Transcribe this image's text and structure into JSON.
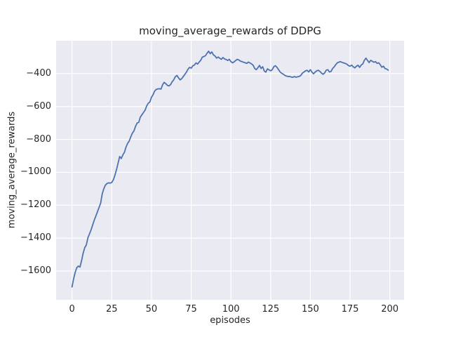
{
  "figure": {
    "title": "moving_average_rewards of DDPG",
    "xlabel": "episodes",
    "ylabel": "moving_average_rewards"
  },
  "chart_data": {
    "type": "line",
    "title": "moving_average_rewards of DDPG",
    "xlabel": "episodes",
    "ylabel": "moving_average_rewards",
    "grid": true,
    "legend": "none",
    "xlim": [
      -10,
      209
    ],
    "ylim": [
      -1775,
      -200
    ],
    "x_ticks": [
      0,
      25,
      50,
      75,
      100,
      125,
      150,
      175,
      200
    ],
    "x_tick_labels": [
      "0",
      "25",
      "50",
      "75",
      "100",
      "125",
      "150",
      "175",
      "200"
    ],
    "y_ticks": [
      -400,
      -600,
      -800,
      -1000,
      -1200,
      -1400,
      -1600
    ],
    "y_tick_labels": [
      "−400",
      "−600",
      "−800",
      "−1000",
      "−1200",
      "−1400",
      "−1600"
    ],
    "style": {
      "axes_background": "#eaeaf2",
      "grid_color": "#ffffff",
      "line_color": "#4c72b0",
      "text_color": "#262626",
      "figure_background": "#ffffff"
    },
    "series": [
      {
        "name": "moving_average_rewards",
        "color": "#4c72b0",
        "x_start": 0,
        "x_step": 1,
        "n_points": 200,
        "values": [
          -1697,
          -1648,
          -1608,
          -1580,
          -1570,
          -1576,
          -1538,
          -1492,
          -1458,
          -1442,
          -1398,
          -1374,
          -1350,
          -1320,
          -1291,
          -1266,
          -1240,
          -1214,
          -1188,
          -1132,
          -1100,
          -1078,
          -1068,
          -1064,
          -1066,
          -1062,
          -1046,
          -1018,
          -984,
          -944,
          -904,
          -916,
          -894,
          -878,
          -846,
          -824,
          -810,
          -784,
          -762,
          -748,
          -720,
          -700,
          -696,
          -664,
          -650,
          -636,
          -622,
          -596,
          -580,
          -572,
          -544,
          -528,
          -506,
          -496,
          -493,
          -492,
          -494,
          -468,
          -453,
          -461,
          -471,
          -475,
          -467,
          -450,
          -438,
          -419,
          -411,
          -425,
          -438,
          -431,
          -418,
          -405,
          -391,
          -373,
          -362,
          -367,
          -353,
          -348,
          -335,
          -342,
          -330,
          -319,
          -300,
          -296,
          -291,
          -276,
          -264,
          -279,
          -268,
          -286,
          -293,
          -306,
          -299,
          -307,
          -313,
          -302,
          -311,
          -314,
          -320,
          -313,
          -327,
          -334,
          -329,
          -320,
          -313,
          -317,
          -324,
          -327,
          -331,
          -334,
          -338,
          -330,
          -335,
          -341,
          -349,
          -369,
          -376,
          -364,
          -350,
          -369,
          -358,
          -384,
          -391,
          -371,
          -377,
          -383,
          -376,
          -358,
          -352,
          -362,
          -376,
          -390,
          -398,
          -404,
          -411,
          -415,
          -418,
          -417,
          -421,
          -422,
          -418,
          -422,
          -419,
          -417,
          -411,
          -397,
          -390,
          -383,
          -380,
          -390,
          -376,
          -391,
          -401,
          -391,
          -383,
          -380,
          -386,
          -397,
          -404,
          -396,
          -379,
          -376,
          -390,
          -387,
          -369,
          -359,
          -345,
          -334,
          -330,
          -327,
          -332,
          -335,
          -338,
          -343,
          -351,
          -355,
          -348,
          -359,
          -365,
          -355,
          -349,
          -362,
          -348,
          -341,
          -319,
          -306,
          -320,
          -333,
          -319,
          -325,
          -331,
          -327,
          -338,
          -334,
          -346,
          -361,
          -355,
          -369,
          -372,
          -379
        ]
      }
    ]
  }
}
